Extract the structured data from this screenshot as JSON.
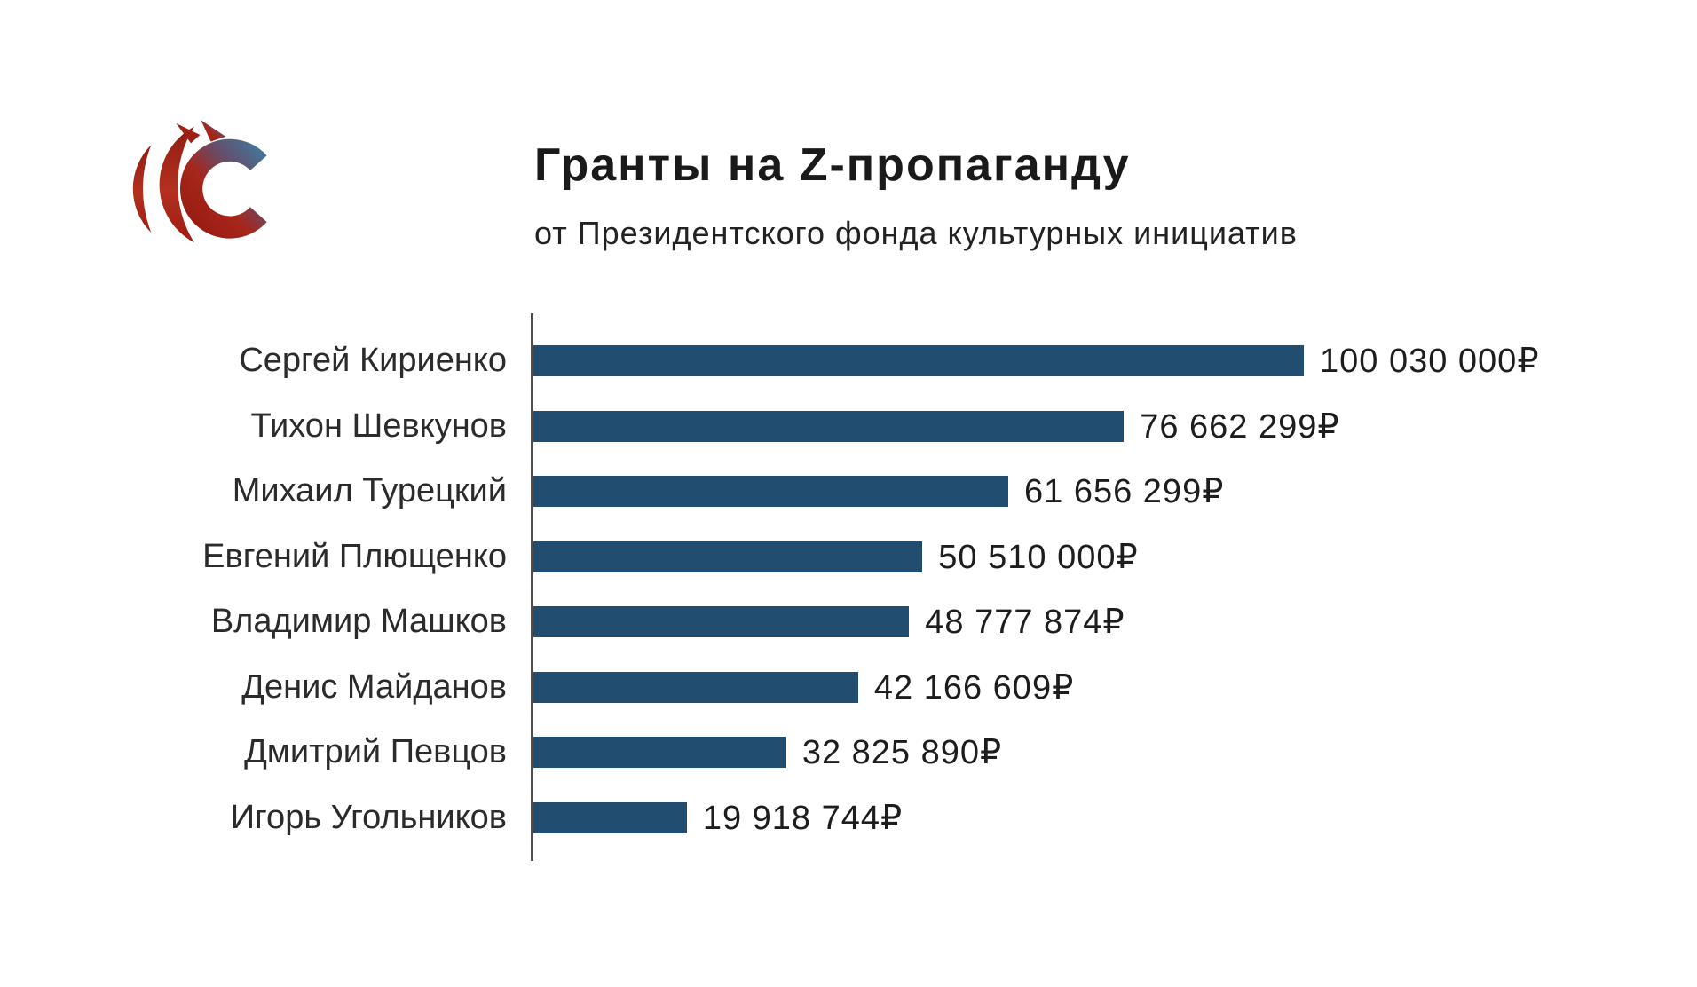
{
  "logo": {
    "name": "sirena-logo"
  },
  "header": {
    "title": "Гранты на Z-пропаганду",
    "subtitle": "от Президентского фонда культурных инициатив"
  },
  "chart_data": {
    "type": "bar",
    "orientation": "horizontal",
    "title": "Гранты на Z-пропаганду",
    "subtitle": "от Президентского фонда культурных инициатив",
    "currency_symbol": "₽",
    "bar_color": "#214e70",
    "axis_color": "#4e4e4e",
    "grid": false,
    "legend": false,
    "xlim": [
      0,
      100030000
    ],
    "categories": [
      "Сергей Кириенко",
      "Тихон Шевкунов",
      "Михаил Турецкий",
      "Евгений Плющенко",
      "Владимир Машков",
      "Денис Майданов",
      "Дмитрий Певцов",
      "Игорь Угольников"
    ],
    "values": [
      100030000,
      76662299,
      61656299,
      50510000,
      48777874,
      42166609,
      32825890,
      19918744
    ],
    "value_labels": [
      "100 030 000₽",
      "76 662 299₽",
      "61 656 299₽",
      "50 510 000₽",
      "48 777 874₽",
      "42 166 609₽",
      "32 825 890₽",
      "19 918 744₽"
    ]
  }
}
